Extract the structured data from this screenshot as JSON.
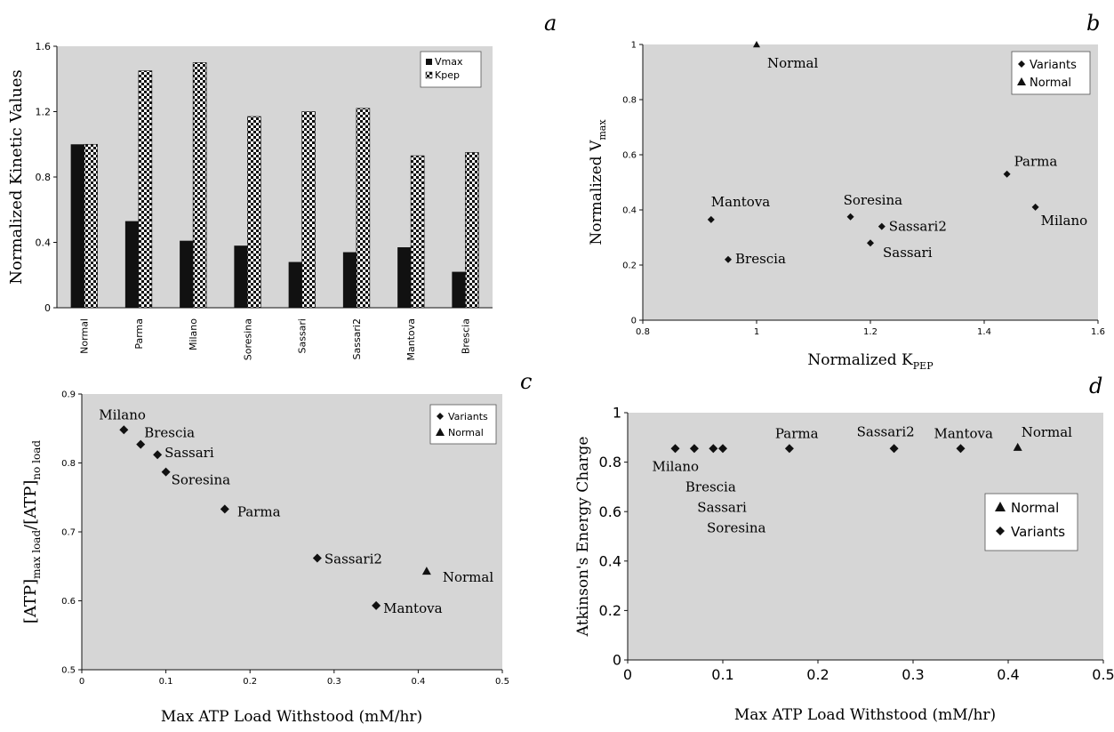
{
  "chart_data": [
    {
      "panel": "a",
      "type": "bar",
      "ylabel": "Normalized Kinetic Values",
      "xlabel": "",
      "ylim": [
        0,
        1.6
      ],
      "yticks": [
        "0",
        "0.4",
        "0.8",
        "1.2",
        "1.6"
      ],
      "categories": [
        "Normal",
        "Parma",
        "Milano",
        "Soresina",
        "Sassari",
        "Sassari2",
        "Mantova",
        "Brescia"
      ],
      "series": [
        {
          "name": "Vmax",
          "color": "#111111",
          "values": [
            1.0,
            0.53,
            0.41,
            0.38,
            0.28,
            0.34,
            0.37,
            0.22
          ]
        },
        {
          "name": "Kpep",
          "pattern": "checker",
          "values": [
            1.0,
            1.45,
            1.5,
            1.17,
            1.2,
            1.22,
            0.93,
            0.95
          ]
        }
      ],
      "legend": "top-right",
      "grid": false
    },
    {
      "panel": "b",
      "type": "scatter",
      "xlabel_main": "Normalized K",
      "xlabel_sub": "PEP",
      "ylabel_main": "Normalized V",
      "ylabel_sub": "max",
      "xlim": [
        0.8,
        1.6
      ],
      "ylim": [
        0,
        1
      ],
      "xticks": [
        "0.8",
        "1",
        "1.2",
        "1.4",
        "1.6"
      ],
      "yticks": [
        "0",
        "0.2",
        "0.4",
        "0.6",
        "0.8",
        "1"
      ],
      "series": [
        {
          "name": "Variants",
          "marker": "diamond",
          "points": [
            {
              "x": 1.44,
              "y": 0.53,
              "label": "Parma"
            },
            {
              "x": 1.49,
              "y": 0.41,
              "label": "Milano"
            },
            {
              "x": 1.165,
              "y": 0.375,
              "label": "Soresina"
            },
            {
              "x": 1.2,
              "y": 0.28,
              "label": "Sassari"
            },
            {
              "x": 1.22,
              "y": 0.34,
              "label": "Sassari2"
            },
            {
              "x": 0.92,
              "y": 0.365,
              "label": "Mantova"
            },
            {
              "x": 0.95,
              "y": 0.22,
              "label": "Brescia"
            }
          ]
        },
        {
          "name": "Normal",
          "marker": "triangle",
          "points": [
            {
              "x": 1.0,
              "y": 1.0,
              "label": "Normal"
            }
          ]
        }
      ],
      "legend": "top-right",
      "grid": false
    },
    {
      "panel": "c",
      "type": "scatter",
      "xlabel": "Max ATP Load Withstood (mM/hr)",
      "ylabel_parts": [
        "[ATP]",
        "max load",
        "/[ATP]",
        "no load"
      ],
      "xlim": [
        0,
        0.5
      ],
      "ylim": [
        0.5,
        0.9
      ],
      "xticks": [
        "0",
        "0.1",
        "0.2",
        "0.3",
        "0.4",
        "0.5"
      ],
      "yticks": [
        "0.5",
        "0.6",
        "0.7",
        "0.8",
        "0.9"
      ],
      "series": [
        {
          "name": "Variants",
          "marker": "diamond",
          "points": [
            {
              "x": 0.05,
              "y": 0.848,
              "label": "Milano"
            },
            {
              "x": 0.07,
              "y": 0.827,
              "label": "Brescia"
            },
            {
              "x": 0.09,
              "y": 0.812,
              "label": "Sassari"
            },
            {
              "x": 0.1,
              "y": 0.787,
              "label": "Soresina"
            },
            {
              "x": 0.17,
              "y": 0.733,
              "label": "Parma"
            },
            {
              "x": 0.28,
              "y": 0.662,
              "label": "Sassari2"
            },
            {
              "x": 0.35,
              "y": 0.593,
              "label": "Mantova"
            }
          ]
        },
        {
          "name": "Normal",
          "marker": "triangle",
          "points": [
            {
              "x": 0.41,
              "y": 0.643,
              "label": "Normal"
            }
          ]
        }
      ],
      "legend": "top-right",
      "grid": false
    },
    {
      "panel": "d",
      "type": "scatter",
      "xlabel": "Max ATP Load Withstood (mM/hr)",
      "ylabel": "Atkinson's Energy Charge",
      "xlim": [
        0,
        0.5
      ],
      "ylim": [
        0,
        1
      ],
      "xticks": [
        "0",
        "0.1",
        "0.2",
        "0.3",
        "0.4",
        "0.5"
      ],
      "yticks": [
        "0",
        "0.2",
        "0.4",
        "0.6",
        "0.8",
        "1"
      ],
      "series": [
        {
          "name": "Normal",
          "marker": "triangle",
          "points": [
            {
              "x": 0.41,
              "y": 0.86,
              "label": "Normal"
            }
          ]
        },
        {
          "name": "Variants",
          "marker": "diamond",
          "points": [
            {
              "x": 0.05,
              "y": 0.855,
              "label": "Milano"
            },
            {
              "x": 0.07,
              "y": 0.855,
              "label": "Brescia"
            },
            {
              "x": 0.09,
              "y": 0.855,
              "label": "Sassari"
            },
            {
              "x": 0.1,
              "y": 0.855,
              "label": "Soresina"
            },
            {
              "x": 0.17,
              "y": 0.855,
              "label": "Parma"
            },
            {
              "x": 0.28,
              "y": 0.855,
              "label": "Sassari2"
            },
            {
              "x": 0.35,
              "y": 0.855,
              "label": "Mantova"
            }
          ]
        }
      ],
      "legend": "right",
      "grid": false
    }
  ]
}
